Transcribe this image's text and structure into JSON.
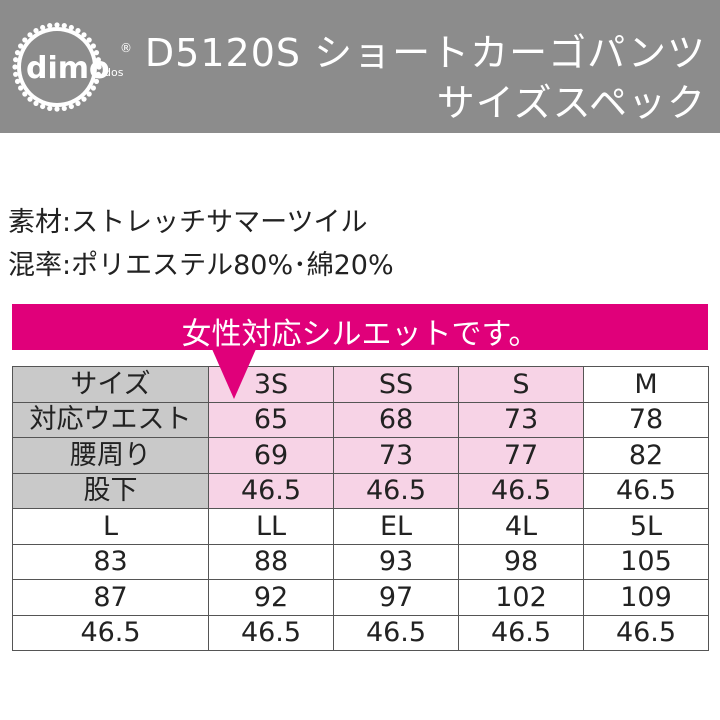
{
  "header": {
    "logo_text": "dimo",
    "logo_sub": "dos",
    "title_line1": "D5120S ショートカーゴパンツ",
    "title_line2": "サイズスペック"
  },
  "specs": {
    "material": "素材:ストレッチサマーツイル",
    "blend": "混率:ポリエステル80%･綿20%"
  },
  "banner": {
    "text": "女性対応シルエットです。"
  },
  "colors": {
    "header_bg": "#8c8c8c",
    "accent": "#e0007a",
    "pink_cell": "#f7d3e6",
    "label_cell": "#c9c9c9"
  },
  "table": {
    "row_labels": [
      "サイズ",
      "対応ウエスト",
      "腰周り",
      "股下"
    ],
    "top": [
      [
        "3S",
        "SS",
        "S",
        "M"
      ],
      [
        "65",
        "68",
        "73",
        "78"
      ],
      [
        "69",
        "73",
        "77",
        "82"
      ],
      [
        "46.5",
        "46.5",
        "46.5",
        "46.5"
      ]
    ],
    "bottom": [
      [
        "L",
        "LL",
        "EL",
        "4L",
        "5L"
      ],
      [
        "83",
        "88",
        "93",
        "98",
        "105"
      ],
      [
        "87",
        "92",
        "97",
        "102",
        "109"
      ],
      [
        "46.5",
        "46.5",
        "46.5",
        "46.5",
        "46.5"
      ]
    ]
  }
}
